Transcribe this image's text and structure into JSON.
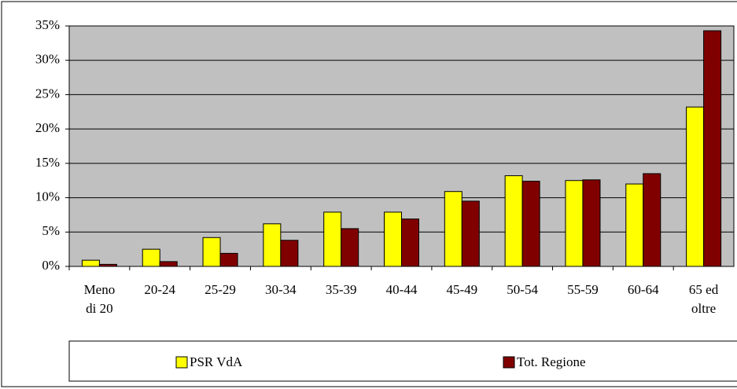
{
  "chart_data": {
    "type": "bar",
    "categories": [
      "Meno di 20",
      "20-24",
      "25-29",
      "30-34",
      "35-39",
      "40-44",
      "45-49",
      "50-54",
      "55-59",
      "60-64",
      "65 ed oltre"
    ],
    "series": [
      {
        "name": "PSR VdA",
        "color": "#ffff00",
        "values": [
          0.9,
          2.5,
          4.2,
          6.2,
          7.9,
          7.9,
          10.9,
          13.2,
          12.5,
          12.0,
          23.2
        ]
      },
      {
        "name": "Tot. Regione",
        "color": "#800000",
        "values": [
          0.3,
          0.7,
          1.9,
          3.8,
          5.5,
          6.9,
          9.5,
          12.4,
          12.6,
          13.5,
          34.3
        ]
      }
    ],
    "ylim": [
      0,
      35
    ],
    "yticks": [
      {
        "value": 0,
        "label": "0%"
      },
      {
        "value": 5,
        "label": "5%"
      },
      {
        "value": 10,
        "label": "10%"
      },
      {
        "value": 15,
        "label": "15%"
      },
      {
        "value": 20,
        "label": "20%"
      },
      {
        "value": 25,
        "label": "25%"
      },
      {
        "value": 30,
        "label": "30%"
      },
      {
        "value": 35,
        "label": "35%"
      }
    ],
    "grid": true,
    "legend": "bottom",
    "plot_background": "#c0c0c0"
  }
}
